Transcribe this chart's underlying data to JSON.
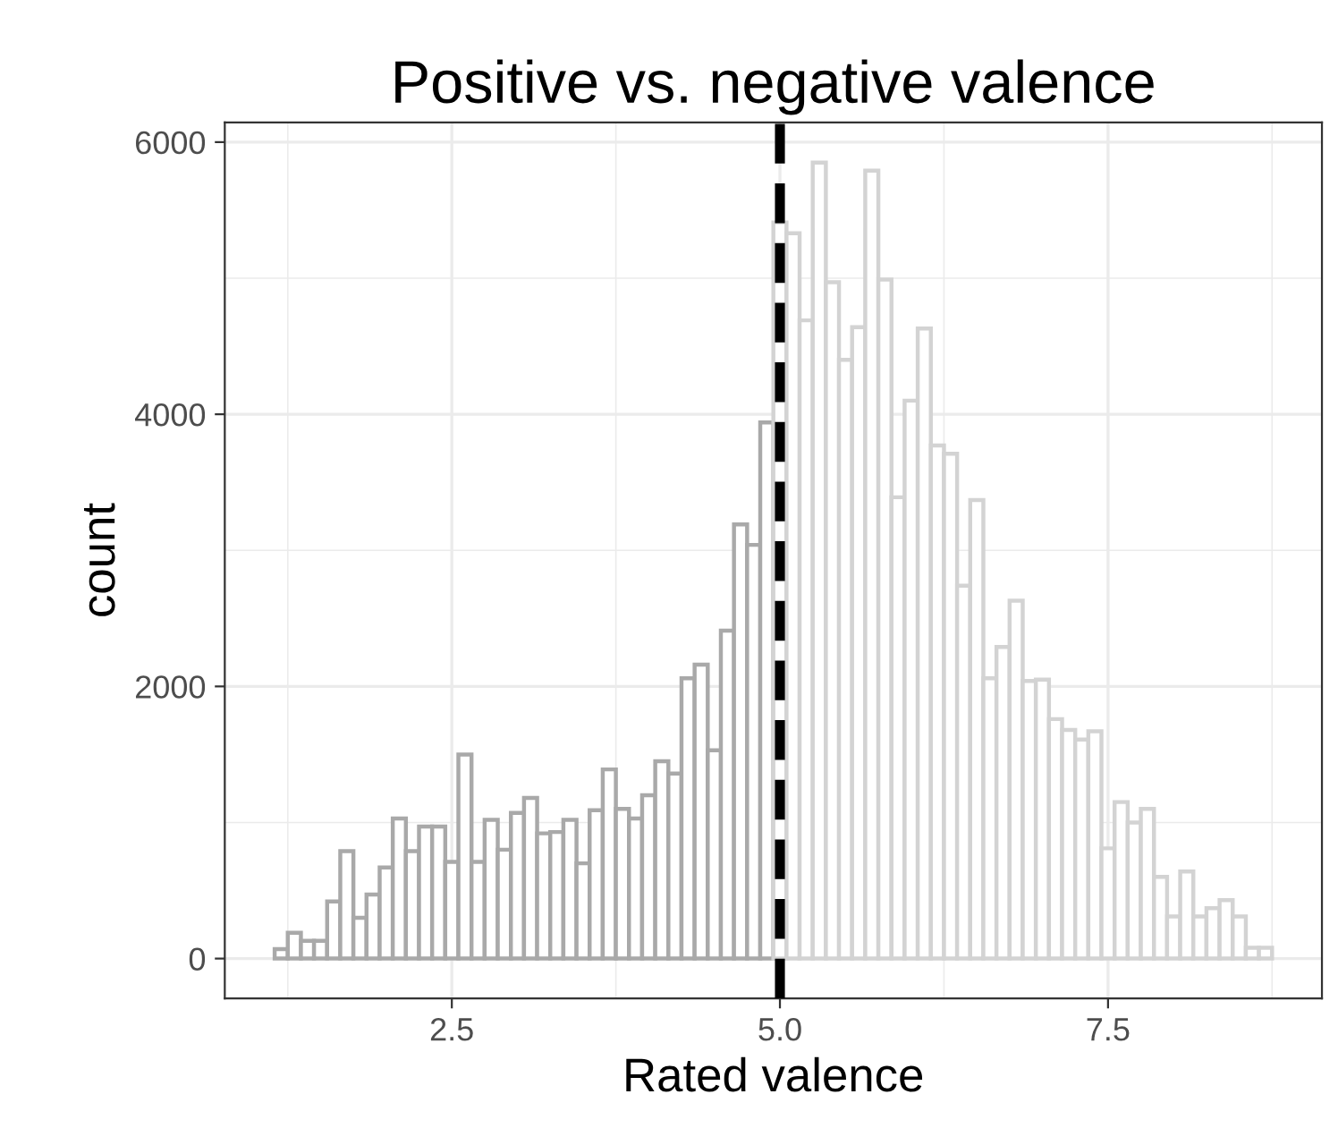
{
  "chart_data": {
    "type": "histogram",
    "title": "Positive vs. negative valence",
    "xlabel": "Rated valence",
    "ylabel": "count",
    "bins": [
      1.15,
      1.25,
      1.35,
      1.45,
      1.55,
      1.65,
      1.75,
      1.85,
      1.95,
      2.05,
      2.15,
      2.25,
      2.35,
      2.45,
      2.55,
      2.65,
      2.75,
      2.85,
      2.95,
      3.05,
      3.15,
      3.25,
      3.35,
      3.45,
      3.55,
      3.65,
      3.75,
      3.85,
      3.95,
      4.05,
      4.15,
      4.25,
      4.35,
      4.45,
      4.55,
      4.65,
      4.75,
      4.85,
      4.95,
      5.05,
      5.15,
      5.25,
      5.35,
      5.45,
      5.55,
      5.65,
      5.75,
      5.85,
      5.95,
      6.05,
      6.15,
      6.25,
      6.35,
      6.45,
      6.55,
      6.65,
      6.75,
      6.85,
      6.95,
      7.05,
      7.15,
      7.25,
      7.35,
      7.45,
      7.55,
      7.65,
      7.75,
      7.85,
      7.95,
      8.05,
      8.15,
      8.25,
      8.35,
      8.45,
      8.55,
      8.65,
      8.75
    ],
    "series": [
      {
        "color": "#a9a9a9",
        "values": [
          70,
          190,
          130,
          130,
          420,
          790,
          300,
          470,
          670,
          1030,
          790,
          970,
          970,
          710,
          1500,
          710,
          1020,
          800,
          1070,
          1180,
          920,
          930,
          1020,
          700,
          1090,
          1390,
          1100,
          1030,
          1200,
          1450,
          1360,
          2060,
          2160,
          1530,
          2410,
          3190,
          3040,
          3940,
          null,
          null,
          null,
          null,
          null,
          null,
          null,
          null,
          null,
          null,
          null,
          null,
          null,
          null,
          null,
          null,
          null,
          null,
          null,
          null,
          null,
          null,
          null,
          null,
          null,
          null,
          null,
          null,
          null,
          null,
          null,
          null,
          null,
          null,
          null,
          null,
          null,
          null
        ]
      },
      {
        "color": "#d3d3d3",
        "values": [
          null,
          null,
          null,
          null,
          null,
          null,
          null,
          null,
          null,
          null,
          null,
          null,
          null,
          null,
          null,
          null,
          null,
          null,
          null,
          null,
          null,
          null,
          null,
          null,
          null,
          null,
          null,
          null,
          null,
          null,
          null,
          null,
          null,
          null,
          null,
          null,
          null,
          null,
          5410,
          5330,
          4690,
          5850,
          4970,
          4400,
          4640,
          5790,
          4990,
          3390,
          4100,
          4630,
          3770,
          3710,
          2740,
          3370,
          2060,
          2290,
          2630,
          2040,
          2050,
          1760,
          1680,
          1610,
          1670,
          810,
          1150,
          1000,
          1100,
          600,
          310,
          640,
          310,
          370,
          430,
          310,
          80,
          80
        ]
      }
    ],
    "xlim": [
      0.77,
      9.13
    ],
    "ylim": [
      -293,
      6144
    ],
    "xticks": [
      2.5,
      {
        "value": 5.0,
        "label": "5.0"
      },
      7.5
    ],
    "yticks": [
      0,
      2000,
      4000,
      6000
    ],
    "ref_lines": [
      {
        "axis": "x",
        "value": 5.0,
        "color": "#000000",
        "line_style": "dashed"
      }
    ],
    "grid": true
  }
}
